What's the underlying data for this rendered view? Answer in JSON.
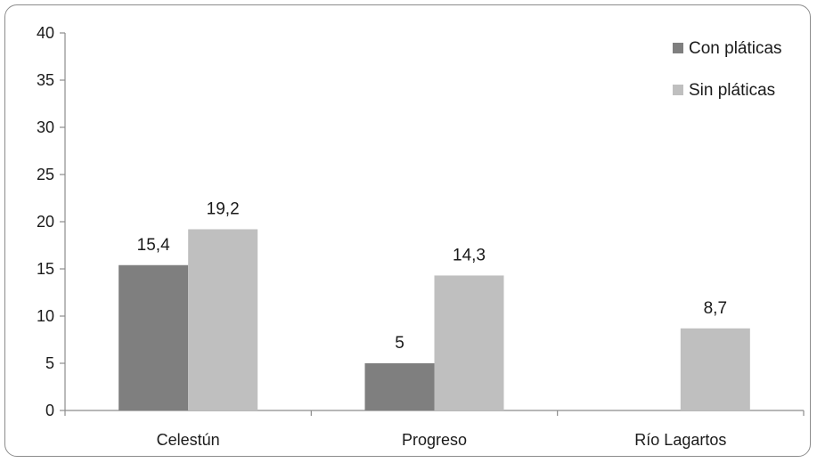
{
  "chart_data": {
    "type": "bar",
    "title": "",
    "xlabel": "",
    "ylabel": "",
    "categories": [
      "Celestún",
      "Progreso",
      "Río Lagartos"
    ],
    "series": [
      {
        "name": "Con pláticas",
        "color": "#7f7f7f",
        "values": [
          15.4,
          5,
          null
        ],
        "labels": [
          "15,4",
          "5",
          ""
        ]
      },
      {
        "name": "Sin pláticas",
        "color": "#bfbfbf",
        "values": [
          19.2,
          14.3,
          8.7
        ],
        "labels": [
          "19,2",
          "14,3",
          "8,7"
        ]
      }
    ],
    "ylim": [
      0,
      40
    ],
    "yticks": [
      0,
      5,
      10,
      15,
      20,
      25,
      30,
      35,
      40
    ],
    "grid": false,
    "legend_position": "top-right"
  }
}
